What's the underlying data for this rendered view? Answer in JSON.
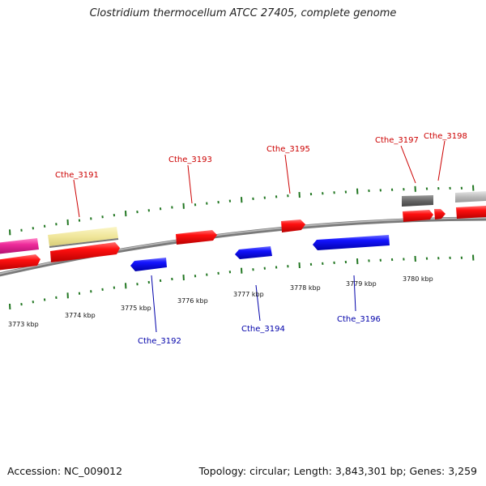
{
  "title": "Clostridium thermocellum ATCC 27405, complete genome",
  "footer": {
    "accession": "Accession: NC_009012",
    "summary": "Topology: circular; Length: 3,843,301 bp; Genes: 3,259"
  },
  "colors": {
    "forward_gene": "#ee0000",
    "reverse_gene": "#0000ee",
    "label_forward": "#cc0000",
    "label_reverse": "#0000aa",
    "tick": "#227722",
    "backbone": "#888888",
    "magenta_feature": "#ee2a9a",
    "yellow_feature": "#f0e69a",
    "dark_gray_feature": "#666666",
    "light_gray_feature": "#bbbbbb"
  },
  "axis_labels": [
    "3773 kbp",
    "3774 kbp",
    "3775 kbp",
    "3776 kbp",
    "3777 kbp",
    "3778 kbp",
    "3779 kbp",
    "3780 kbp"
  ],
  "genes_forward": [
    "Cthe_3191",
    "Cthe_3193",
    "Cthe_3195",
    "Cthe_3197",
    "Cthe_3198"
  ],
  "genes_reverse": [
    "Cthe_3192",
    "Cthe_3194",
    "Cthe_3196"
  ]
}
